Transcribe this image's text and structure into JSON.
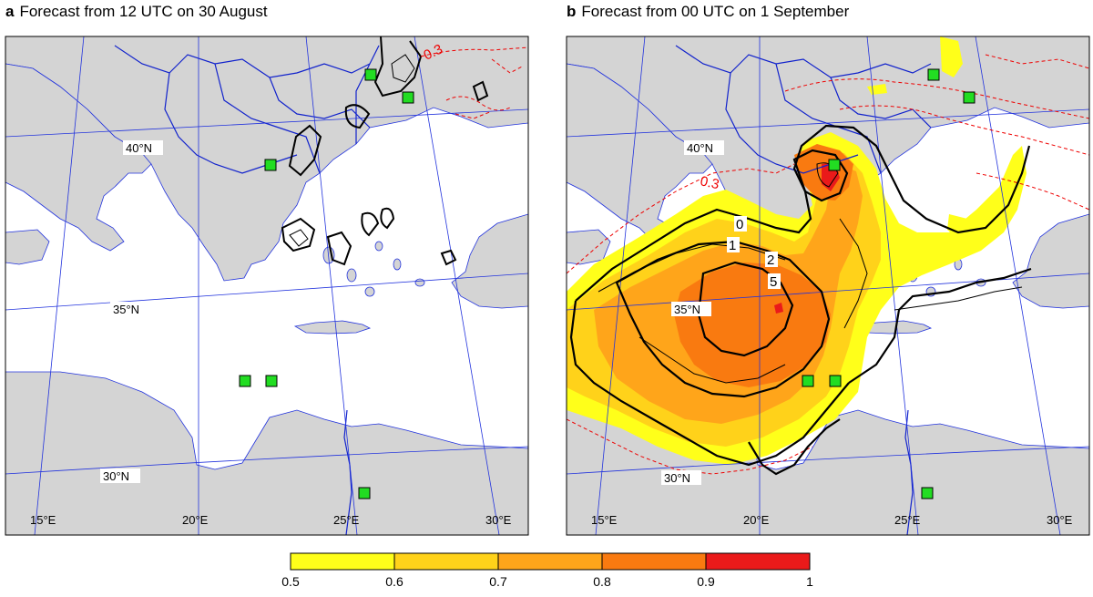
{
  "panels": [
    {
      "letter": "a",
      "title": "Forecast from 12 UTC on 30 August"
    },
    {
      "letter": "b",
      "title": "Forecast from 00 UTC on 1 September"
    }
  ],
  "graticule": {
    "longitudes": [
      "15°E",
      "20°E",
      "25°E",
      "30°E"
    ],
    "latitudes": [
      "40°N",
      "35°N",
      "30°N"
    ]
  },
  "contour_labels": {
    "black": [
      "0",
      "1",
      "2",
      "5"
    ],
    "red": [
      "0.3"
    ]
  },
  "colorbar": {
    "ticks": [
      "0.5",
      "0.6",
      "0.7",
      "0.8",
      "0.9",
      "1"
    ],
    "colors": [
      "#ffff1a",
      "#ffd21a",
      "#ffa51a",
      "#f97a10",
      "#ea1a1a"
    ]
  },
  "colors": {
    "land": "#d4d4d4",
    "sea": "#ffffff",
    "grid": "#2233dd",
    "marker": "#22dd22",
    "red_contour": "#ee0000"
  }
}
